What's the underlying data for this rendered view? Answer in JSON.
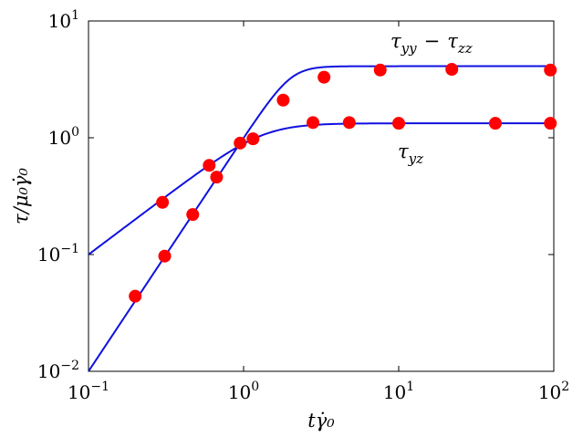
{
  "chart_data": {
    "type": "scatter",
    "xlabel": "tγ̇₀",
    "ylabel": "τ/μ₀γ̇₀",
    "xscale": "log",
    "yscale": "log",
    "xlim": [
      0.1,
      100
    ],
    "ylim": [
      0.01,
      10
    ],
    "x_ticks": [
      {
        "value": 0.1,
        "base": "10",
        "exp": "−1"
      },
      {
        "value": 1,
        "base": "10",
        "exp": "0"
      },
      {
        "value": 10,
        "base": "10",
        "exp": "1"
      },
      {
        "value": 100,
        "base": "10",
        "exp": "2"
      }
    ],
    "y_ticks": [
      {
        "value": 0.01,
        "base": "10",
        "exp": "−2"
      },
      {
        "value": 0.1,
        "base": "10",
        "exp": "−1"
      },
      {
        "value": 1,
        "base": "10",
        "exp": "0"
      },
      {
        "value": 10,
        "base": "10",
        "exp": "1"
      }
    ],
    "grid": false,
    "legend": "none",
    "line_color": "#1010e0",
    "marker_color": "#ff0000",
    "series": [
      {
        "name": "τyz",
        "label_main": "τ",
        "label_sub": "yz",
        "model": {
          "low_slope": 1,
          "plateau": 1.33,
          "sharpness": 3
        },
        "points": [
          {
            "x": 0.3,
            "y": 0.28
          },
          {
            "x": 0.6,
            "y": 0.58
          },
          {
            "x": 0.95,
            "y": 0.9
          },
          {
            "x": 2.8,
            "y": 1.35
          },
          {
            "x": 4.8,
            "y": 1.35
          },
          {
            "x": 10,
            "y": 1.33
          },
          {
            "x": 42,
            "y": 1.33
          },
          {
            "x": 95,
            "y": 1.33
          }
        ]
      },
      {
        "name": "τyy − τzz",
        "label_main": "τ",
        "label_sub": "yy",
        "label_op": "−",
        "label_main2": "τ",
        "label_sub2": "zz",
        "model": {
          "low_slope": 2,
          "plateau": 4.1,
          "sharpness": 3
        },
        "points": [
          {
            "x": 0.2,
            "y": 0.044
          },
          {
            "x": 0.31,
            "y": 0.097
          },
          {
            "x": 0.47,
            "y": 0.22
          },
          {
            "x": 0.67,
            "y": 0.46
          },
          {
            "x": 1.15,
            "y": 0.98
          },
          {
            "x": 1.8,
            "y": 2.1
          },
          {
            "x": 3.3,
            "y": 3.3
          },
          {
            "x": 7.6,
            "y": 3.8
          },
          {
            "x": 22,
            "y": 3.85
          },
          {
            "x": 95,
            "y": 3.8
          }
        ]
      }
    ]
  }
}
